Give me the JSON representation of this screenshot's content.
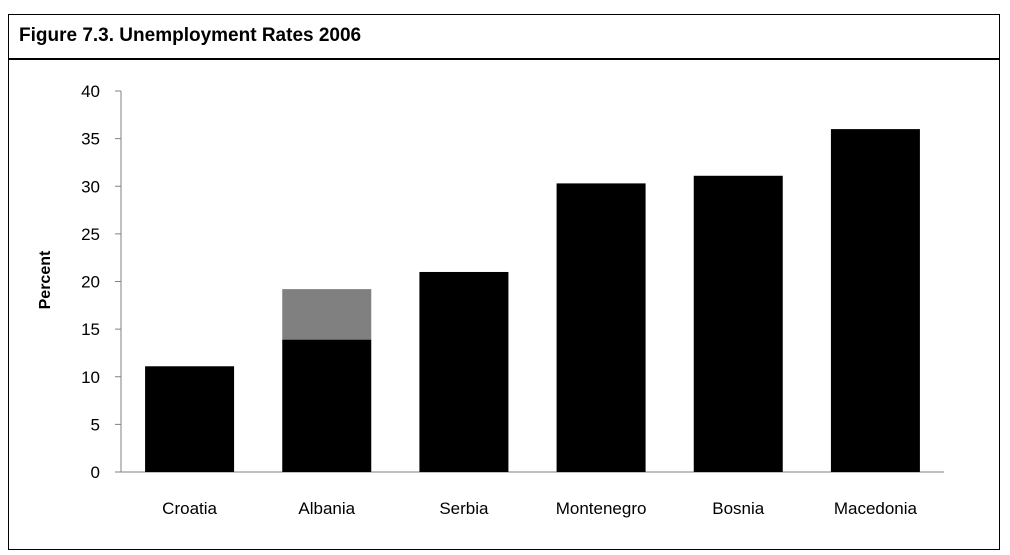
{
  "figure_title": "Figure 7.3. Unemployment Rates 2006",
  "colors": {
    "primary": "#000000",
    "stacked": "#808080",
    "axis": "#808080"
  },
  "chart_data": {
    "type": "bar",
    "stacked": true,
    "title": "Figure 7.3. Unemployment Rates 2006",
    "xlabel": "",
    "ylabel": "Percent",
    "ylim": [
      0,
      40
    ],
    "yticks": [
      0,
      5,
      10,
      15,
      20,
      25,
      30,
      35,
      40
    ],
    "categories": [
      "Croatia",
      "Albania",
      "Serbia",
      "Montenegro",
      "Bosnia",
      "Macedonia"
    ],
    "series": [
      {
        "values": [
          11.1,
          13.9,
          21.0,
          30.3,
          31.1,
          36.0
        ],
        "color": "#000000"
      },
      {
        "values": [
          0,
          5.3,
          0,
          0,
          0,
          0
        ],
        "color": "#808080"
      }
    ],
    "grid": false,
    "legend": "none"
  }
}
